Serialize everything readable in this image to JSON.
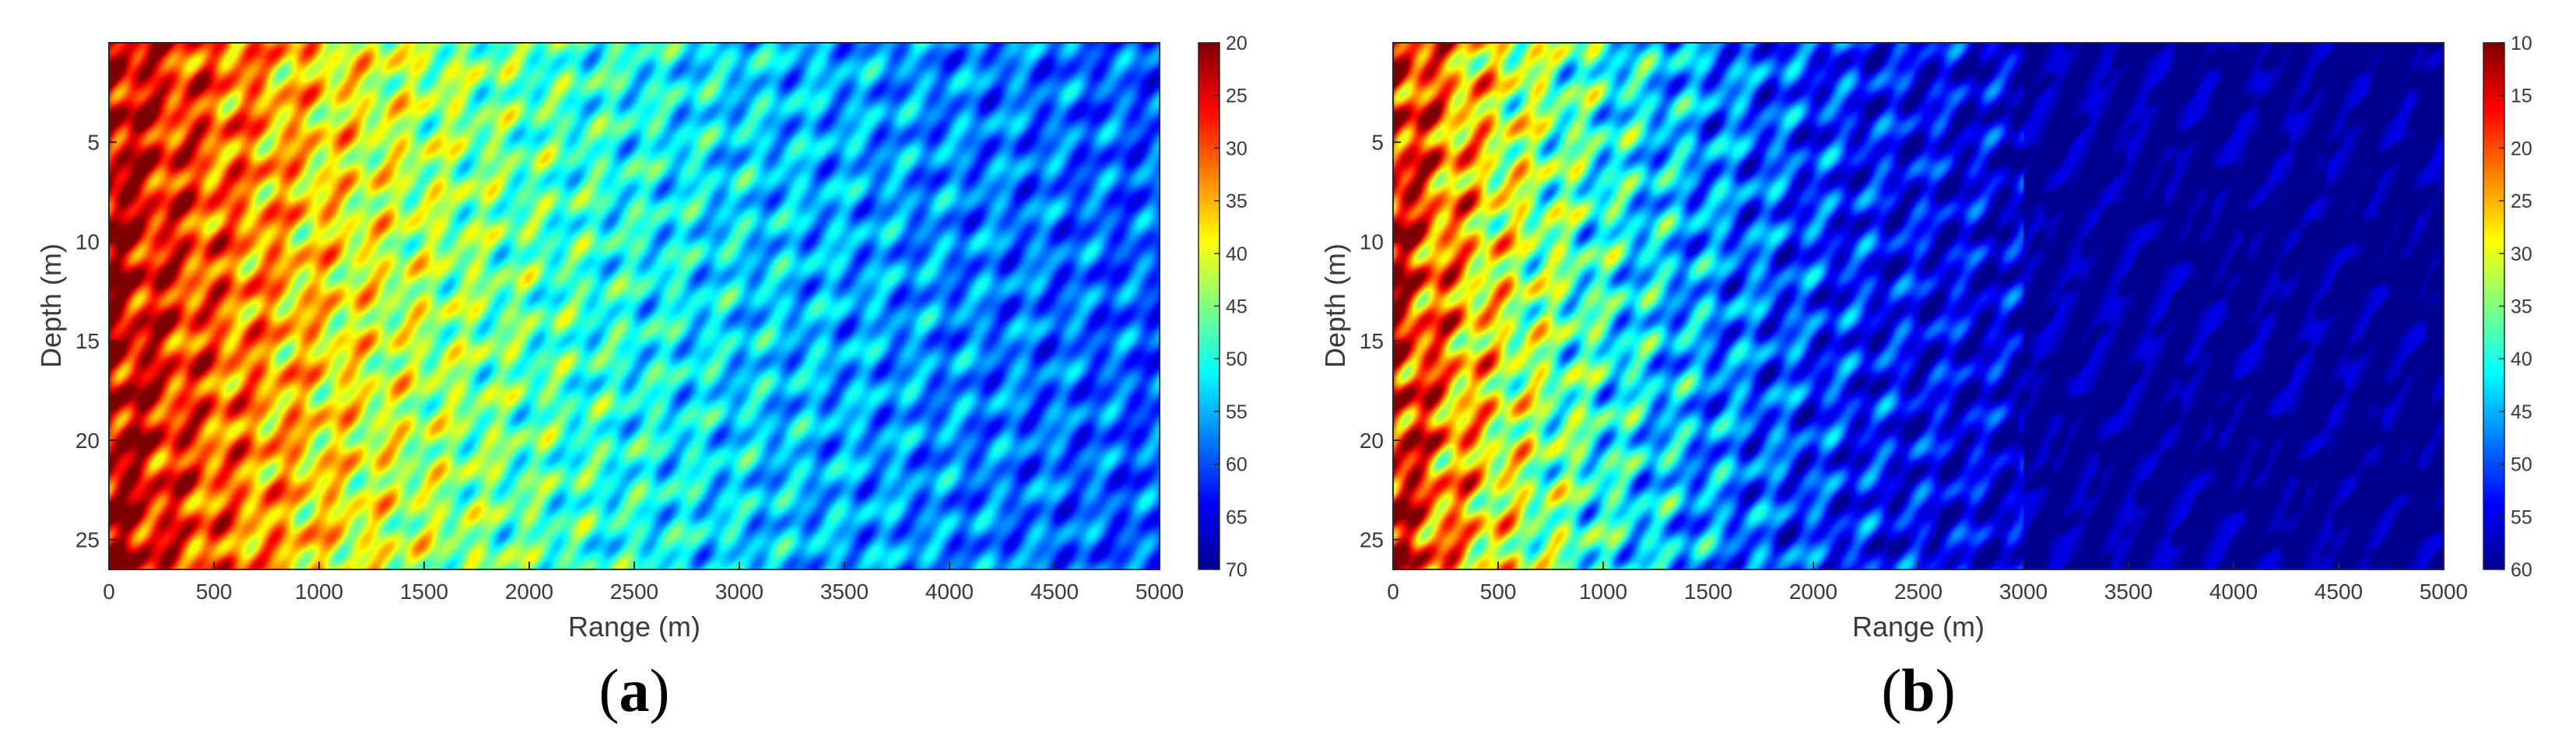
{
  "figure": {
    "panels": [
      {
        "caption_open": "(",
        "caption_letter": "a",
        "caption_close": ")"
      },
      {
        "caption_open": "(",
        "caption_letter": "b",
        "caption_close": ")"
      }
    ]
  },
  "chart_data": [
    {
      "type": "heatmap",
      "title": "",
      "xlabel": "Range (m)",
      "ylabel": "Depth (m)",
      "xlim": [
        0,
        5000
      ],
      "ylim": [
        0,
        26.5
      ],
      "y_reversed": true,
      "x_ticks": [
        0,
        500,
        1000,
        1500,
        2000,
        2500,
        3000,
        3500,
        4000,
        4500,
        5000
      ],
      "y_ticks": [
        5,
        10,
        15,
        20,
        25
      ],
      "colorbar": {
        "range": [
          20,
          70
        ],
        "ticks": [
          20,
          25,
          30,
          35,
          40,
          45,
          50,
          55,
          60,
          65,
          70
        ],
        "colormap": "jet",
        "reversed": true,
        "colors": [
          "#7f0000",
          "#ff0000",
          "#ff8000",
          "#ffff00",
          "#80ff80",
          "#00ffff",
          "#0080ff",
          "#0000ff",
          "#00008f"
        ]
      },
      "field": {
        "near_value": 22,
        "far_value": 64,
        "decay_range_m": 2200,
        "stripe_contrast": 8
      }
    },
    {
      "type": "heatmap",
      "title": "",
      "xlabel": "Range (m)",
      "ylabel": "Depth (m)",
      "xlim": [
        0,
        5000
      ],
      "ylim": [
        0,
        26.5
      ],
      "y_reversed": true,
      "x_ticks": [
        0,
        500,
        1000,
        1500,
        2000,
        2500,
        3000,
        3500,
        4000,
        4500,
        5000
      ],
      "y_ticks": [
        5,
        10,
        15,
        20,
        25
      ],
      "colorbar": {
        "range": [
          10,
          60
        ],
        "ticks": [
          10,
          15,
          20,
          25,
          30,
          35,
          40,
          45,
          50,
          55,
          60
        ],
        "colormap": "jet",
        "reversed": true,
        "colors": [
          "#7f0000",
          "#ff0000",
          "#ff8000",
          "#ffff00",
          "#80ff80",
          "#00ffff",
          "#0080ff",
          "#0000ff",
          "#00008f"
        ]
      },
      "field": {
        "near_value": 14,
        "far_value": 60,
        "decay_range_m": 1200,
        "stripe_contrast": 10
      }
    }
  ]
}
